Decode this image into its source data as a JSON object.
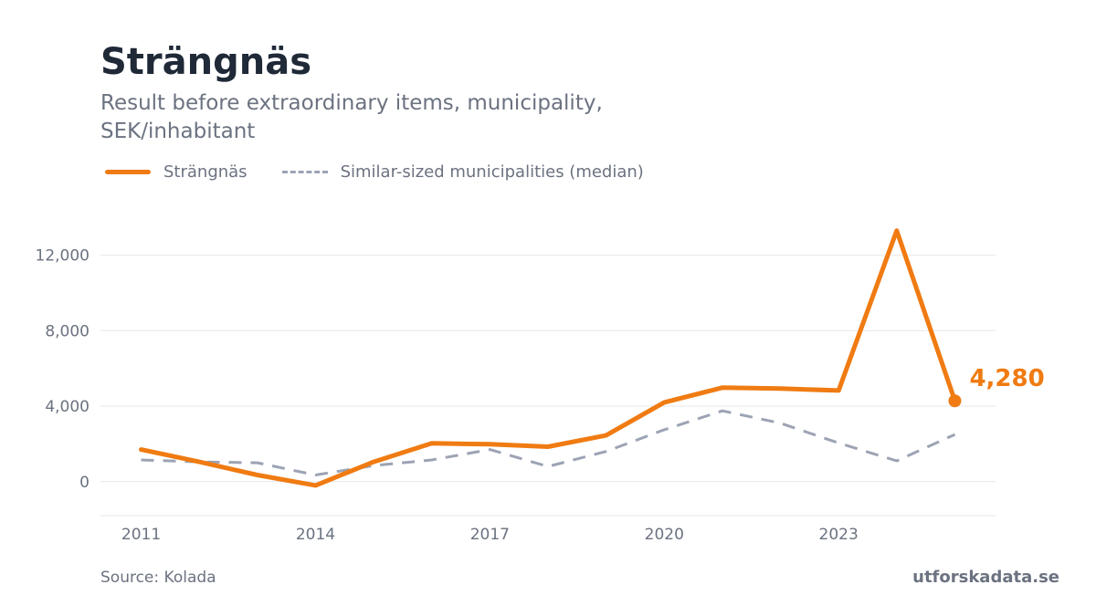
{
  "header": {
    "title": "Strängnäs",
    "subtitle": "Result before extraordinary items, municipality, SEK/inhabitant"
  },
  "legend": {
    "primary_label": "Strängnäs",
    "median_label": "Similar-sized municipalities (median)"
  },
  "footer": {
    "source": "Source: Kolada",
    "brand": "utforskadata.se"
  },
  "colors": {
    "primary": "#f07b12",
    "median": "#9ca3b4",
    "grid": "#e5e7eb",
    "axis_text": "#6b7280"
  },
  "chart_data": {
    "type": "line",
    "x": [
      2011,
      2012,
      2013,
      2014,
      2015,
      2016,
      2017,
      2018,
      2019,
      2020,
      2021,
      2022,
      2023,
      2024,
      2025
    ],
    "series": [
      {
        "name": "Strängnäs",
        "values": [
          1700,
          1050,
          350,
          -200,
          1050,
          2030,
          1980,
          1850,
          2450,
          4200,
          4980,
          4930,
          4830,
          13300,
          4280
        ]
      },
      {
        "name": "Similar-sized municipalities (median)",
        "values": [
          1150,
          1050,
          1000,
          350,
          850,
          1150,
          1700,
          800,
          1600,
          2750,
          3750,
          3100,
          2050,
          1100,
          2500
        ]
      }
    ],
    "x_ticks": [
      2011,
      2014,
      2017,
      2020,
      2023
    ],
    "x_tick_labels": [
      "2011",
      "2014",
      "2017",
      "2020",
      "2023"
    ],
    "y_ticks": [
      0,
      4000,
      8000,
      12000
    ],
    "y_tick_labels": [
      "0",
      "4,000",
      "8,000",
      "12,000"
    ],
    "xlim": [
      2010.3,
      2025.7
    ],
    "ylim": [
      -1800,
      14300
    ],
    "end_label": "4,280",
    "grid": true,
    "legend_position": "top-left"
  }
}
